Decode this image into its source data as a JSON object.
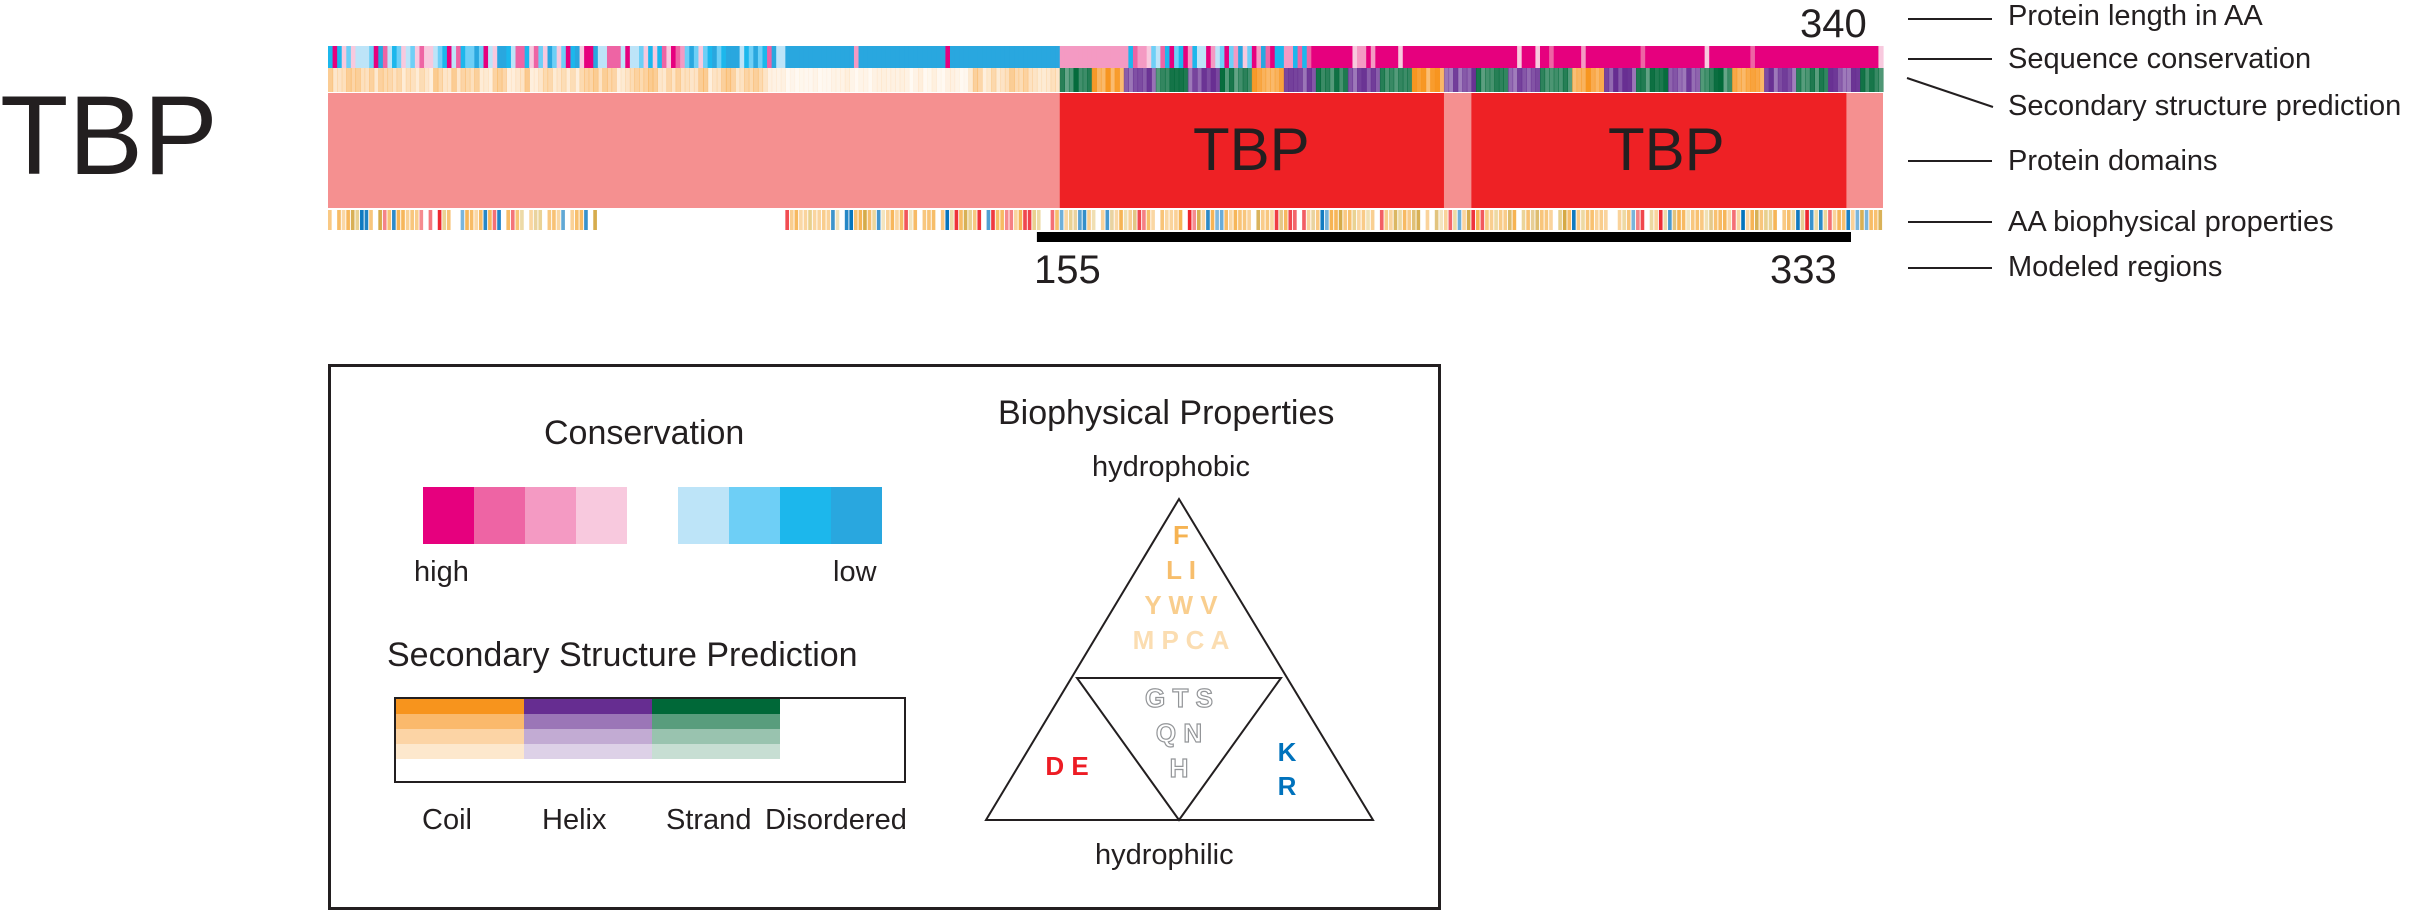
{
  "protein": {
    "name": "TBP",
    "length_label": "340",
    "length_aa": 340,
    "domains": [
      {
        "label": "TBP",
        "start": 160,
        "end": 244
      },
      {
        "label": "TBP",
        "start": 250,
        "end": 332
      }
    ],
    "modeled_region": {
      "start_label": "155",
      "end_label": "333",
      "start": 155,
      "end": 333
    }
  },
  "annotations": {
    "length": "Protein length in AA",
    "conservation": "Sequence conservation",
    "secondary": "Secondary structure prediction",
    "domains": "Protein domains",
    "biophysical": "AA biophysical properties",
    "modeled": "Modeled regions"
  },
  "colors": {
    "domain_background": "#f59090",
    "domain_fill": "#ee2125",
    "conservation_high": [
      "#e6007e",
      "#ee64a4",
      "#f49ac3",
      "#f8c9de"
    ],
    "conservation_low": [
      "#bde4f8",
      "#6ecff6",
      "#1cb7ec",
      "#29a7df"
    ],
    "coil": "#f7941d",
    "helix": "#662d91",
    "strand": "#006838",
    "hydrophobic": "#f6b352",
    "polar": "#939598",
    "acidic": "#ed1c24",
    "basic": "#0072bc"
  },
  "legend": {
    "conservation_title": "Conservation",
    "high_label": "high",
    "low_label": "low",
    "ss_title": "Secondary Structure Prediction",
    "ss_labels": [
      "Coil",
      "Helix",
      "Strand",
      "Disordered"
    ],
    "biophys_title": "Biophysical Properties",
    "hydrophobic_label": "hydrophobic",
    "hydrophilic_label": "hydrophilic",
    "hydrophobic_rows": [
      "F",
      "L I",
      "Y W V",
      "M P C A"
    ],
    "polar_rows": [
      "G T S",
      "Q N",
      "H"
    ],
    "acidic": "D E",
    "basic_rows": [
      "K",
      "R"
    ]
  }
}
